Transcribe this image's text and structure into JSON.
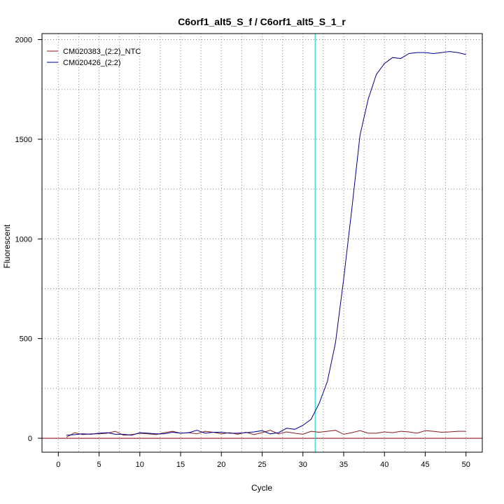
{
  "chart_data": {
    "type": "line",
    "title": "C6orf1_alt5_S_f / C6orf1_alt5_S_1_r",
    "xlabel": "Cycle",
    "ylabel": "Fluorescent",
    "xlim": [
      -2,
      52
    ],
    "ylim": [
      -70,
      2030
    ],
    "xticks": [
      0,
      5,
      10,
      15,
      20,
      25,
      30,
      35,
      40,
      45,
      50
    ],
    "yticks": [
      0,
      500,
      1000,
      1500,
      2000
    ],
    "grid": true,
    "legend_position": "top-left",
    "threshold_cycle": 31.5,
    "threshold_color": "#00cccc",
    "baseline_value": 0,
    "baseline_color": "#8b0000",
    "series": [
      {
        "name": "CM020383_(2:2)_NTC",
        "color": "#8b1a1a",
        "x": [
          1,
          2,
          3,
          4,
          5,
          6,
          7,
          8,
          9,
          10,
          11,
          12,
          13,
          14,
          15,
          16,
          17,
          18,
          19,
          20,
          21,
          22,
          23,
          24,
          25,
          26,
          27,
          28,
          29,
          30,
          31,
          32,
          33,
          34,
          35,
          36,
          37,
          38,
          39,
          40,
          41,
          42,
          43,
          44,
          45,
          46,
          47,
          48,
          49,
          50
        ],
        "values": [
          5,
          28,
          18,
          22,
          22,
          25,
          35,
          15,
          18,
          25,
          22,
          18,
          28,
          35,
          25,
          28,
          22,
          35,
          30,
          22,
          28,
          20,
          30,
          18,
          28,
          40,
          22,
          32,
          25,
          20,
          35,
          30,
          35,
          40,
          20,
          28,
          38,
          25,
          25,
          32,
          28,
          35,
          32,
          25,
          38,
          35,
          30,
          32,
          35,
          35
        ]
      },
      {
        "name": "CM020426_(2:2)",
        "color": "#00008b",
        "x": [
          1,
          2,
          3,
          4,
          5,
          6,
          7,
          8,
          9,
          10,
          11,
          12,
          13,
          14,
          15,
          16,
          17,
          18,
          19,
          20,
          21,
          22,
          23,
          24,
          25,
          26,
          27,
          28,
          29,
          30,
          31,
          32,
          33,
          34,
          35,
          36,
          37,
          38,
          39,
          40,
          41,
          42,
          43,
          44,
          45,
          46,
          47,
          48,
          49,
          50
        ],
        "values": [
          15,
          18,
          22,
          20,
          25,
          28,
          20,
          20,
          15,
          28,
          25,
          22,
          22,
          30,
          25,
          28,
          40,
          25,
          30,
          30,
          25,
          25,
          28,
          32,
          38,
          22,
          28,
          50,
          45,
          65,
          95,
          175,
          285,
          480,
          800,
          1150,
          1520,
          1700,
          1825,
          1880,
          1910,
          1905,
          1930,
          1935,
          1935,
          1930,
          1935,
          1940,
          1935,
          1925
        ]
      }
    ]
  }
}
